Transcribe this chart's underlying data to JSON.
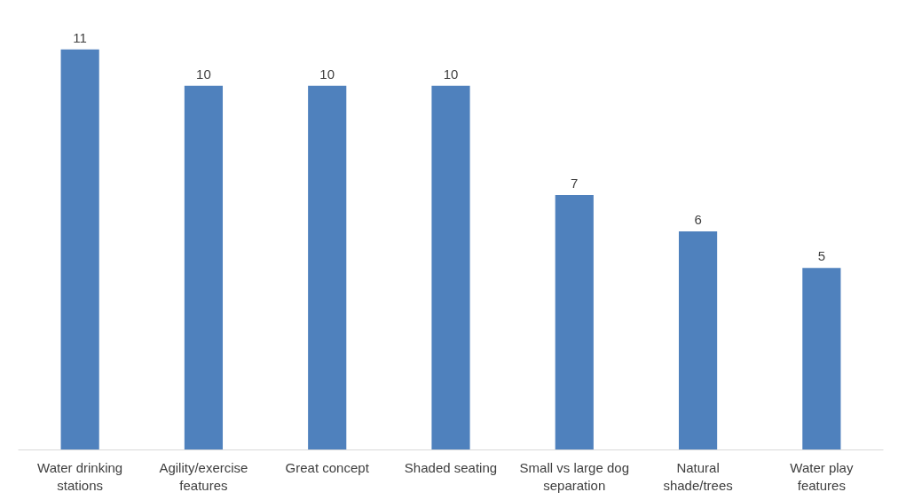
{
  "chart_data": {
    "type": "bar",
    "categories": [
      "Water drinking stations",
      "Agility/exercise features",
      "Great concept",
      "Shaded seating",
      "Small vs large dog separation",
      "Natural shade/trees",
      "Water play features"
    ],
    "values": [
      11,
      10,
      10,
      10,
      7,
      6,
      5
    ],
    "color": "#4f81bd",
    "data_labels": true
  }
}
